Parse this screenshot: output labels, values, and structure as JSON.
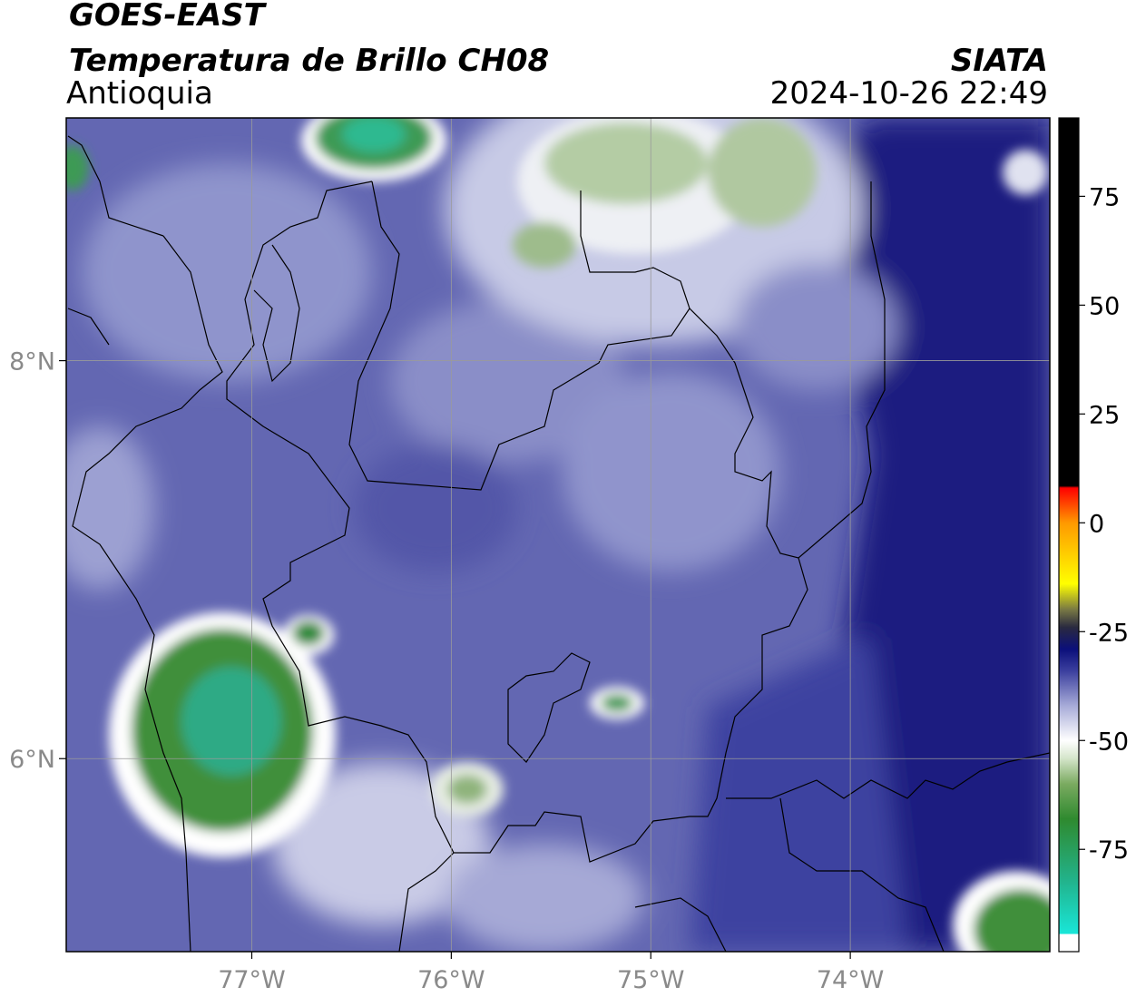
{
  "header": {
    "title": "GOES-EAST",
    "product": "Temperatura de Brillo CH08",
    "region": "Antioquia",
    "source": "SIATA",
    "datetime": "2024-10-26 22:49"
  },
  "map": {
    "xlim": [
      -77.93,
      -73.0
    ],
    "ylim": [
      5.03,
      9.22
    ],
    "xticks": [
      {
        "value": -77,
        "label": "77°W"
      },
      {
        "value": -76,
        "label": "76°W"
      },
      {
        "value": -75,
        "label": "75°W"
      },
      {
        "value": -74,
        "label": "74°W"
      }
    ],
    "yticks": [
      {
        "value": 8,
        "label": "8°N"
      },
      {
        "value": 6,
        "label": "6°N"
      }
    ],
    "grid": true,
    "grid_color": "#9a9a9a"
  },
  "colorbar": {
    "clim": [
      -98.5,
      93
    ],
    "ticks": [
      75,
      50,
      25,
      0,
      -25,
      -50,
      -75
    ],
    "stops": [
      {
        "value": -98.5,
        "color": "#ffffff"
      },
      {
        "value": -94.5,
        "color": "#ffffff"
      },
      {
        "value": -94.4,
        "color": "#19e6d8"
      },
      {
        "value": -82,
        "color": "#22b28a"
      },
      {
        "value": -68,
        "color": "#2f8a2f"
      },
      {
        "value": -60,
        "color": "#7aaa60"
      },
      {
        "value": -54,
        "color": "#d6e6cc"
      },
      {
        "value": -50,
        "color": "#ffffff"
      },
      {
        "value": -42,
        "color": "#a7abd8"
      },
      {
        "value": -34,
        "color": "#3b3f9e"
      },
      {
        "value": -29,
        "color": "#0b0f7a"
      },
      {
        "value": -24,
        "color": "#2a2a40"
      },
      {
        "value": -20,
        "color": "#777744"
      },
      {
        "value": -14,
        "color": "#ffff00"
      },
      {
        "value": 0,
        "color": "#ff9900"
      },
      {
        "value": 8,
        "color": "#ff0000"
      },
      {
        "value": 8.5,
        "color": "#000000"
      },
      {
        "value": 93,
        "color": "#000000"
      }
    ]
  }
}
